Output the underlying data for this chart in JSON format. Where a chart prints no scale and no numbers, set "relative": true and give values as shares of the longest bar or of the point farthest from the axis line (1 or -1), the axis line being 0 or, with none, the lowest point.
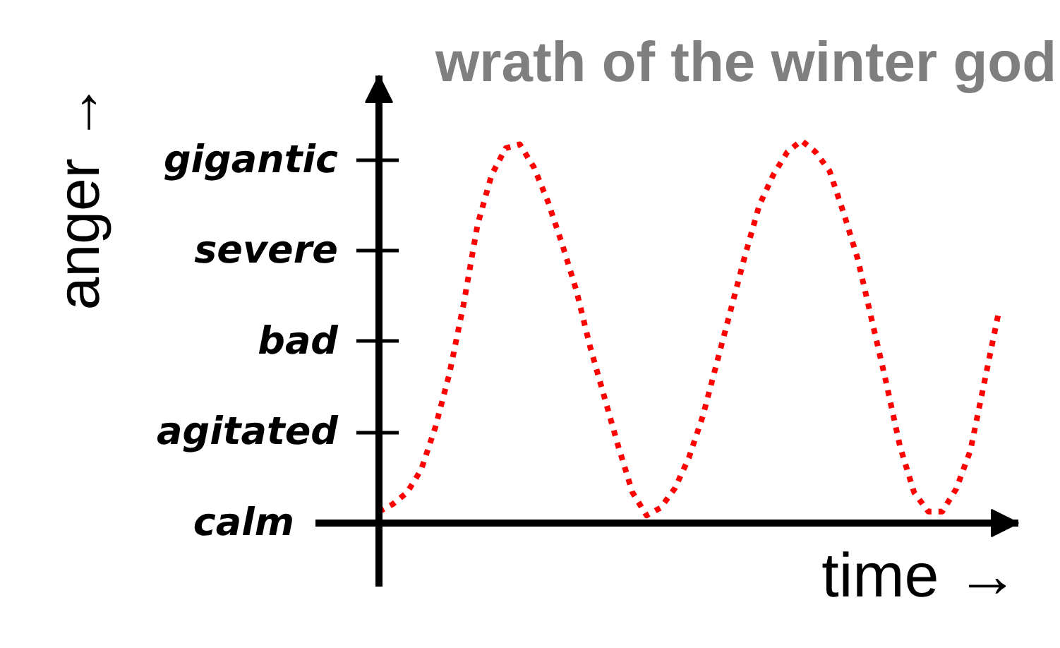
{
  "chart_data": {
    "type": "line",
    "title": "wrath of the winter god",
    "xlabel": "time →",
    "ylabel": "anger →",
    "relative": true,
    "categories": [
      null,
      null,
      null,
      null,
      null,
      null,
      null,
      null,
      null,
      null,
      null,
      null,
      null,
      null,
      null,
      null,
      null,
      null,
      null,
      null,
      null,
      null,
      null,
      null,
      null,
      null,
      null,
      null,
      null,
      null,
      null,
      null,
      null,
      null,
      null,
      null,
      null,
      null,
      null,
      null,
      null,
      null,
      null,
      null,
      null
    ],
    "series": [
      {
        "color": "#ff0000",
        "values": [
          0.03,
          0.05,
          0.08,
          0.14,
          0.25,
          0.39,
          0.57,
          0.78,
          0.91,
          0.98,
          0.99,
          0.93,
          0.84,
          0.73,
          0.61,
          0.46,
          0.33,
          0.2,
          0.08,
          0.02,
          0.04,
          0.09,
          0.17,
          0.28,
          0.42,
          0.56,
          0.7,
          0.83,
          0.91,
          0.97,
          1,
          0.97,
          0.92,
          0.81,
          0.69,
          0.53,
          0.37,
          0.2,
          0.08,
          0.03,
          0.03,
          0.09,
          0.19,
          0.37,
          0.55
        ]
      }
    ],
    "annotations": [
      "calm",
      "agitated",
      "bad",
      "severe",
      "gigantic"
    ],
    "tick_labels": "y",
    "line_style": "dotted"
  }
}
